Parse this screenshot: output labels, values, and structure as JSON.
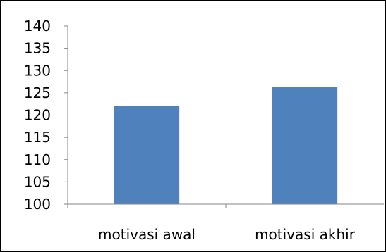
{
  "chart_data": {
    "type": "bar",
    "title": "",
    "xlabel": "",
    "ylabel": "",
    "categories": [
      "motivasi awal",
      "motivasi akhir"
    ],
    "values": [
      122,
      126.3
    ],
    "ylim": [
      100,
      140
    ],
    "yticks": [
      100,
      105,
      110,
      115,
      120,
      125,
      130,
      135,
      140
    ],
    "grid": false,
    "legend": "none",
    "colors": {
      "bar": "#4f81bd",
      "axis": "#868686",
      "text": "#000000",
      "border": "#000000"
    }
  }
}
